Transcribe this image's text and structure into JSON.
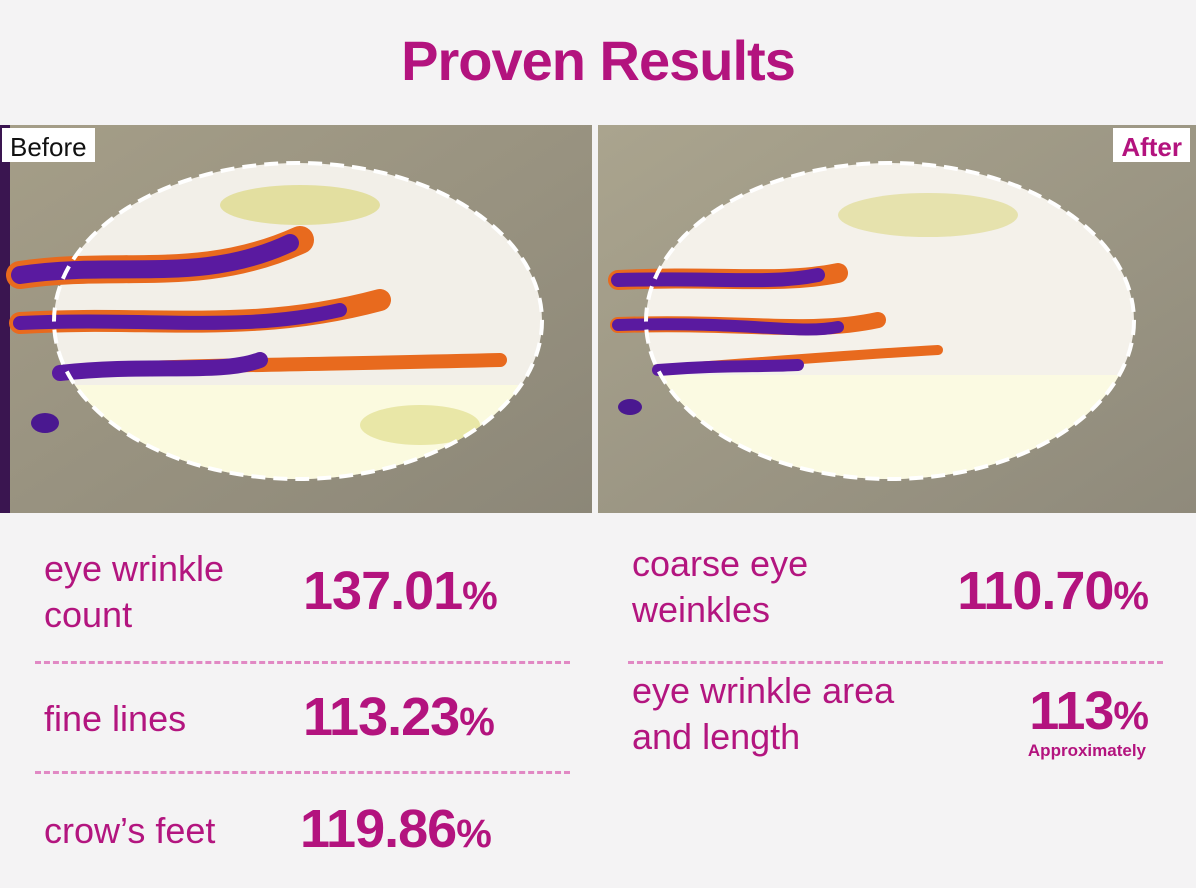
{
  "title": "Proven Results",
  "images": {
    "before_label": "Before",
    "after_label": "After"
  },
  "stats_left": [
    {
      "label": "eye wrinkle count",
      "value": "137.01",
      "unit": "%"
    },
    {
      "label": "fine lines",
      "value": "113.23",
      "unit": "%"
    },
    {
      "label": "crow’s feet",
      "value": "119.86",
      "unit": "%"
    }
  ],
  "stats_right": [
    {
      "label": "coarse eye weinkles",
      "value": "110.70",
      "unit": "%"
    },
    {
      "label": "eye wrinkle area and length",
      "value": "113",
      "unit": "%",
      "note": "Approximately"
    }
  ],
  "colors": {
    "accent": "#b3137e",
    "divider": "#e189c4",
    "background": "#f4f3f4"
  }
}
